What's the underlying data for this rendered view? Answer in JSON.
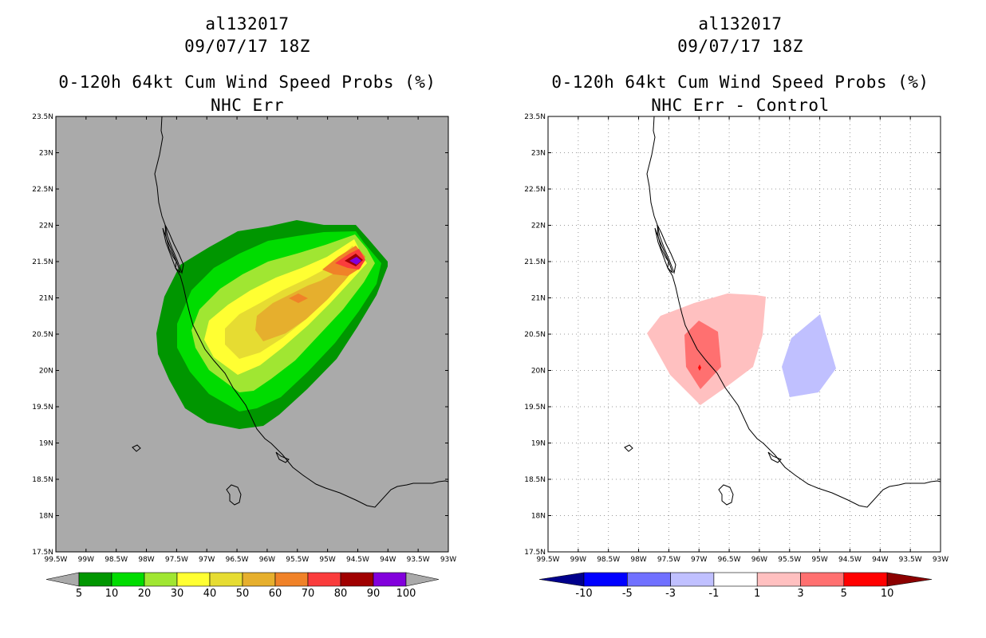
{
  "left_panel": {
    "storm_id": "al132017",
    "datetime": "09/07/17 18Z",
    "product": "0-120h 64kt Cum Wind Speed Probs (%)",
    "subtitle": "NHC Err"
  },
  "right_panel": {
    "storm_id": "al132017",
    "datetime": "09/07/17 18Z",
    "product": "0-120h 64kt Cum Wind Speed Probs (%)",
    "subtitle": "NHC Err - Control"
  },
  "map_axes": {
    "lon_labels": [
      "99.5W",
      "99W",
      "98.5W",
      "98W",
      "97.5W",
      "97W",
      "96.5W",
      "96W",
      "95.5W",
      "95W",
      "94.5W",
      "94W",
      "93.5W",
      "93W"
    ],
    "lat_labels": [
      "17.5N",
      "18N",
      "18.5N",
      "19N",
      "19.5N",
      "20N",
      "20.5N",
      "21N",
      "21.5N",
      "22N",
      "22.5N",
      "23N",
      "23.5N"
    ]
  },
  "left_colorbar": {
    "colors": [
      "#009600",
      "#00dc00",
      "#a0e632",
      "#ffff32",
      "#e6dc32",
      "#e6af2d",
      "#f08228",
      "#fa3c3c",
      "#a00000",
      "#8200dc"
    ],
    "labels": [
      "5",
      "10",
      "20",
      "30",
      "40",
      "50",
      "60",
      "70",
      "80",
      "90",
      "100"
    ]
  },
  "right_colorbar": {
    "colors": [
      "#0000ff",
      "#7070ff",
      "#c0c0ff",
      "#ffffff",
      "#ffc0c0",
      "#ff7070",
      "#ff0000"
    ],
    "left_tip": "#00008c",
    "right_tip": "#8c0000",
    "labels": [
      "-10",
      "-5",
      "-3",
      "-1",
      "1",
      "3",
      "5",
      "10"
    ]
  },
  "colors": {
    "land_background": "#aaaaaa",
    "coastline": "#000000"
  }
}
